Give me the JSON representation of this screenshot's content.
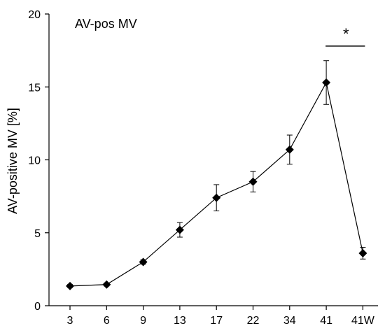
{
  "chart_data": {
    "type": "line",
    "title": "AV-pos MV",
    "xlabel": "",
    "ylabel": "AV-positive MV [%]",
    "categories": [
      "3",
      "6",
      "9",
      "13",
      "17",
      "22",
      "34",
      "41",
      "41W"
    ],
    "series": [
      {
        "values": [
          1.35,
          1.45,
          3.0,
          5.2,
          7.4,
          8.5,
          10.7,
          15.3,
          3.6
        ],
        "errors": [
          0.1,
          0.1,
          0.15,
          0.5,
          0.9,
          0.7,
          1.0,
          1.5,
          0.4
        ]
      }
    ],
    "ylim": [
      0,
      20
    ],
    "yticks": [
      0,
      5,
      10,
      15,
      20
    ],
    "grid": false,
    "marker": "diamond",
    "significance": {
      "label": "*",
      "between": [
        "41",
        "41W"
      ]
    },
    "colors": {
      "line": "#000000",
      "marker": "#000000"
    }
  }
}
